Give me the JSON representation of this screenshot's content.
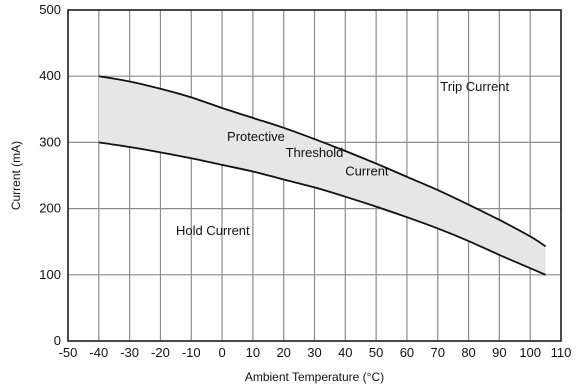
{
  "chart_data": {
    "type": "area",
    "xlabel": "Ambient Temperature (°C)",
    "ylabel": "Current (mA)",
    "xlim": [
      -50,
      110
    ],
    "ylim": [
      0,
      500
    ],
    "xticks": [
      -50,
      -40,
      -30,
      -20,
      -10,
      0,
      10,
      20,
      30,
      40,
      50,
      60,
      70,
      80,
      90,
      100,
      110
    ],
    "yticks": [
      0,
      100,
      200,
      300,
      400,
      500
    ],
    "grid": true,
    "fill_color": "#e6e6e6",
    "line_color": "#111111",
    "series": [
      {
        "name": "Trip Current",
        "x": [
          -40,
          -30,
          -20,
          -10,
          0,
          10,
          20,
          30,
          40,
          50,
          60,
          70,
          80,
          90,
          100,
          105
        ],
        "y": [
          400,
          392,
          381,
          368,
          352,
          337,
          322,
          305,
          287,
          268,
          248,
          228,
          206,
          183,
          158,
          143
        ]
      },
      {
        "name": "Hold Current",
        "x": [
          -40,
          -30,
          -20,
          -10,
          0,
          10,
          20,
          30,
          40,
          50,
          60,
          70,
          80,
          90,
          100,
          105
        ],
        "y": [
          300,
          293,
          285,
          276,
          266,
          256,
          244,
          232,
          218,
          203,
          187,
          170,
          151,
          130,
          110,
          100
        ]
      }
    ],
    "annotations": [
      {
        "text": "Trip Current",
        "x": 82,
        "y": 378
      },
      {
        "text": "Protective",
        "x": 11,
        "y": 302
      },
      {
        "text": "Threshold",
        "x": 30,
        "y": 278
      },
      {
        "text": "Current",
        "x": 47,
        "y": 250
      },
      {
        "text": "Hold Current",
        "x": -3,
        "y": 160
      }
    ]
  }
}
